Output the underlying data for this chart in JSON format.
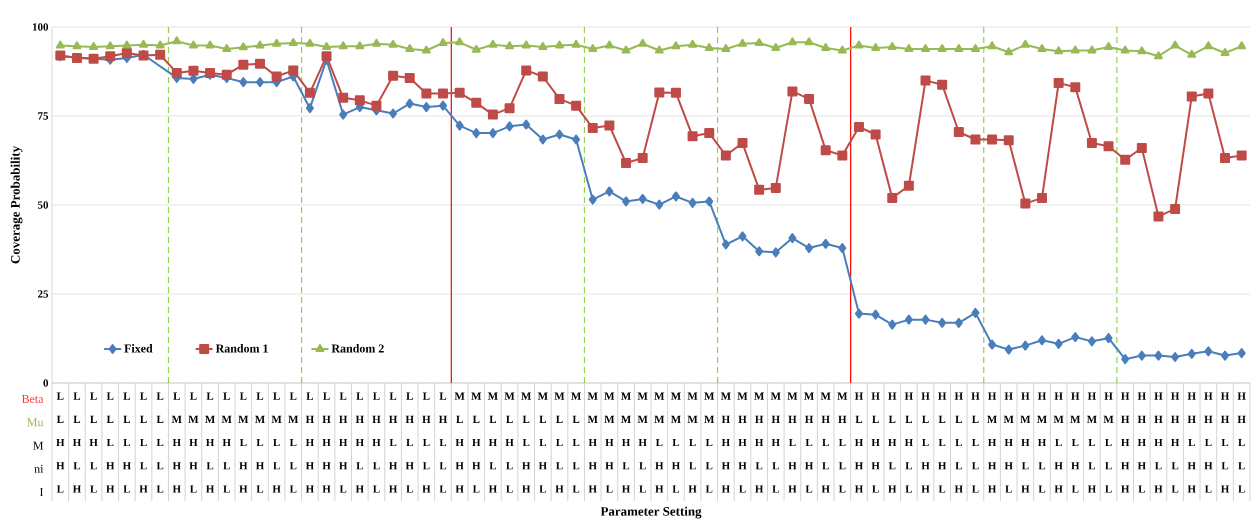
{
  "chart_data": {
    "type": "line",
    "ylabel": "Coverage Probability",
    "categories": [
      "L L H H L",
      "L L H L H",
      "L L H L L",
      "L L L H H",
      "L L L H L",
      "L L L L H",
      "L L L L L",
      "L M H H H",
      "L M H H L",
      "L M H L H",
      "L M H L L",
      "L M L H H",
      "L M L H L",
      "L M L L H",
      "L M L L L",
      "L H H H H",
      "L H H H H",
      "L H H H L",
      "L H H L H",
      "L H H L L",
      "L H L H H",
      "L H L H L",
      "L H L L H",
      "L H L L L",
      "M L H H H",
      "M L H H L",
      "M L H L H",
      "M L H L L",
      "M L L H H",
      "M L L H L",
      "M L L L H",
      "M L L L L",
      "M M H H H",
      "M M H H L",
      "M M H L H",
      "M M H L L",
      "M M L H H",
      "M M L H L",
      "M M L L H",
      "M M L L L",
      "M H H H H",
      "M H H H L",
      "M H H L H",
      "M H H L L",
      "M H L H H",
      "M H L H L",
      "M H L L H",
      "M H L L L",
      "H L H H H",
      "H L H H L",
      "H L H L H",
      "H L H L L",
      "H L L H H",
      "H L L H L",
      "H L L L H",
      "H L L L L",
      "H M H H H",
      "H M H H L",
      "H M H L H",
      "H M H L L",
      "H M L H H",
      "H M L H L",
      "H M L L H",
      "H M L L L",
      "H H H H H",
      "H H H H L",
      "H H H L H",
      "H H H L L",
      "H H L H H",
      "H H L H L",
      "H H L L H",
      "H H L L L"
    ],
    "series": [
      {
        "name": "Fixed",
        "color": "#4a7ebb",
        "marker": "diamond",
        "values": [
          91.8,
          null,
          null,
          90.8,
          91.3,
          92.2,
          null,
          85.7,
          85.4,
          86.6,
          85.7,
          84.5,
          84.5,
          84.5,
          86.1,
          77.2,
          90.8,
          75.4,
          77.5,
          76.6,
          75.7,
          78.5,
          77.5,
          77.9,
          72.3,
          70.2,
          70.2,
          72.1,
          72.6,
          68.4,
          69.8,
          68.4,
          51.5,
          53.8,
          51,
          51.7,
          50.1,
          52.4,
          50.6,
          51,
          38.9,
          41.2,
          37,
          36.7,
          40.7,
          37.9,
          39.1,
          37.9,
          19.5,
          19.2,
          16.4,
          17.8,
          17.8,
          16.9,
          16.9,
          19.7,
          10.8,
          9.4,
          10.5,
          12,
          11,
          12.9,
          11.7,
          12.6,
          6.7,
          7.7,
          7.7,
          7.3,
          8.2,
          8.9,
          7.7,
          8.4
        ]
      },
      {
        "name": "Random 1",
        "color": "#be4b48",
        "marker": "square",
        "values": [
          92,
          91.3,
          91.1,
          91.8,
          92.7,
          92,
          92.2,
          87.1,
          87.7,
          87.1,
          86.6,
          89.4,
          89.7,
          86.1,
          87.8,
          81.5,
          91.8,
          80.1,
          79.4,
          77.9,
          86.3,
          85.7,
          81.3,
          81.3,
          81.5,
          78.7,
          75.4,
          77.2,
          87.8,
          86.1,
          79.8,
          77.9,
          71.6,
          72.3,
          61.8,
          63.2,
          81.6,
          81.5,
          69.3,
          70.2,
          63.9,
          67.4,
          54.3,
          54.8,
          81.9,
          79.8,
          65.4,
          63.9,
          71.9,
          69.8,
          52,
          55.4,
          85,
          83.8,
          70.5,
          68.4,
          68.4,
          68.2,
          50.4,
          52,
          84.3,
          83.1,
          67.4,
          66.5,
          62.7,
          66,
          46.8,
          48.9,
          80.5,
          81.3,
          63.2,
          63.9
        ]
      },
      {
        "name": "Random 2",
        "color": "#98b954",
        "marker": "triangle",
        "values": [
          94.8,
          94.6,
          94.4,
          94.6,
          94.8,
          95,
          94.8,
          96,
          94.8,
          94.8,
          93.8,
          94.3,
          94.8,
          95.3,
          95.5,
          95.3,
          94.4,
          94.6,
          94.6,
          95.3,
          95,
          93.8,
          93.4,
          95.5,
          95.7,
          93.6,
          95,
          94.6,
          94.8,
          94.4,
          94.8,
          95,
          93.8,
          94.8,
          93.4,
          95.3,
          93.4,
          94.6,
          95,
          94.1,
          93.8,
          95.3,
          95.5,
          94.1,
          95.7,
          95.7,
          94.1,
          93.4,
          94.8,
          94.1,
          94.4,
          93.8,
          93.8,
          93.8,
          93.8,
          93.8,
          94.6,
          92.9,
          95,
          93.8,
          93.2,
          93.4,
          93.4,
          94.4,
          93.4,
          93.2,
          91.8,
          94.8,
          92.2,
          94.6,
          92.7,
          94.6
        ]
      }
    ],
    "ylim": [
      0,
      100
    ],
    "yticks": [
      0,
      25,
      50,
      75,
      100
    ],
    "grid": "y",
    "legend": "bottom left",
    "line_style": "solid",
    "annotations": [
      "Beta",
      "Mu",
      "M",
      "ni",
      "I",
      "Parameter Setting"
    ]
  }
}
